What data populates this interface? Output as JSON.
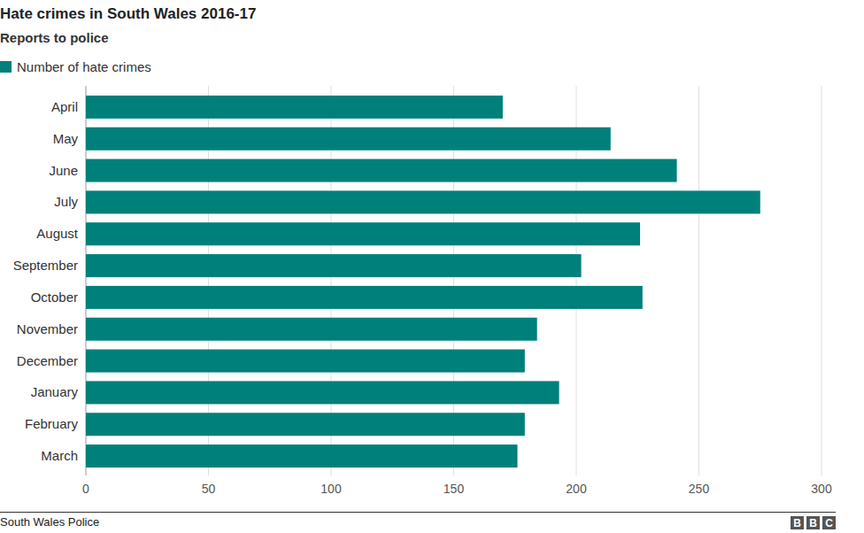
{
  "chart_data": {
    "type": "bar",
    "orientation": "horizontal",
    "title": "Hate crimes in South Wales 2016-17",
    "subtitle": "Reports to police",
    "categories": [
      "April",
      "May",
      "June",
      "July",
      "August",
      "September",
      "October",
      "November",
      "December",
      "January",
      "February",
      "March"
    ],
    "series": [
      {
        "name": "Number of hate crimes",
        "color": "#00807a",
        "values": [
          170,
          214,
          241,
          275,
          226,
          202,
          227,
          184,
          179,
          193,
          179,
          176
        ]
      }
    ],
    "xlim": [
      0,
      300
    ],
    "xticks": [
      0,
      50,
      100,
      150,
      200,
      250,
      300
    ],
    "grid": true,
    "legend": "top-left",
    "source": "South Wales Police",
    "logo": [
      "B",
      "B",
      "C"
    ]
  }
}
